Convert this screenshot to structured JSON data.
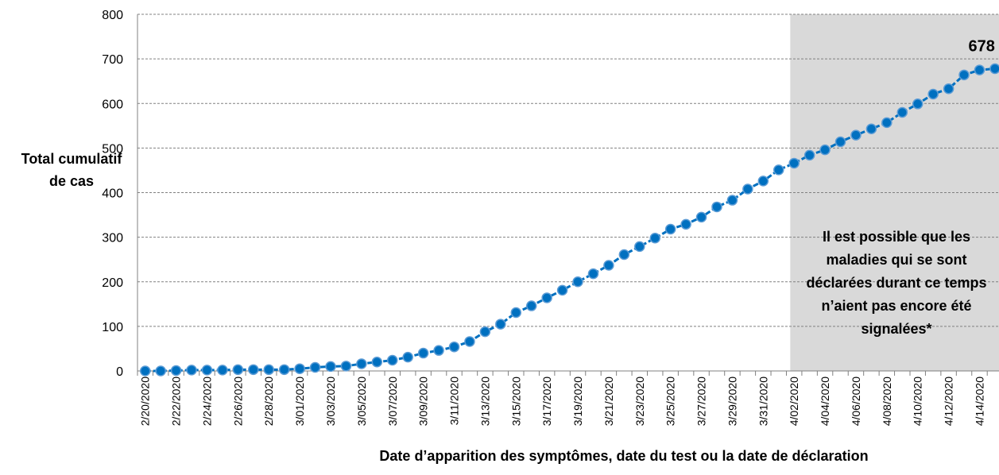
{
  "chart_data": {
    "type": "line",
    "y_label": "Total cumulatif de cas",
    "x_label": "Date d’apparition des symptômes, date du test ou la date de déclaration",
    "annotation": "Il est possible que les maladies qui se sont déclarées durant ce temps n’aient pas encore été signalées*",
    "shaded_from": "4/02/2020",
    "label_last_point": true,
    "categories": [
      "2/20/2020",
      null,
      "2/22/2020",
      null,
      "2/24/2020",
      null,
      "2/26/2020",
      null,
      "2/28/2020",
      null,
      "3/01/2020",
      null,
      "3/03/2020",
      null,
      "3/05/2020",
      null,
      "3/07/2020",
      null,
      "3/09/2020",
      null,
      "3/11/2020",
      null,
      "3/13/2020",
      null,
      "3/15/2020",
      null,
      "3/17/2020",
      null,
      "3/19/2020",
      null,
      "3/21/2020",
      null,
      "3/23/2020",
      null,
      "3/25/2020",
      null,
      "3/27/2020",
      null,
      "3/29/2020",
      null,
      "3/31/2020",
      null,
      "4/02/2020",
      null,
      "4/04/2020",
      null,
      "4/06/2020",
      null,
      "4/08/2020",
      null,
      "4/10/2020",
      null,
      "4/12/2020",
      null,
      "4/14/2020",
      null
    ],
    "series": [
      {
        "color": "#0070c0",
        "values": [
          0,
          0,
          1,
          2,
          2,
          2,
          3,
          3,
          3,
          3,
          5,
          8,
          10,
          11,
          16,
          20,
          24,
          31,
          40,
          46,
          54,
          66,
          88,
          105,
          131,
          146,
          164,
          181,
          200,
          218,
          237,
          261,
          279,
          298,
          318,
          329,
          345,
          368,
          383,
          408,
          426,
          451,
          466,
          484,
          496,
          514,
          529,
          543,
          557,
          580,
          599,
          621,
          633,
          664,
          675,
          678
        ]
      }
    ],
    "ylim": [
      0,
      800
    ],
    "yticks": [
      0,
      100,
      200,
      300,
      400,
      500,
      600,
      700,
      800
    ],
    "grid": true
  }
}
